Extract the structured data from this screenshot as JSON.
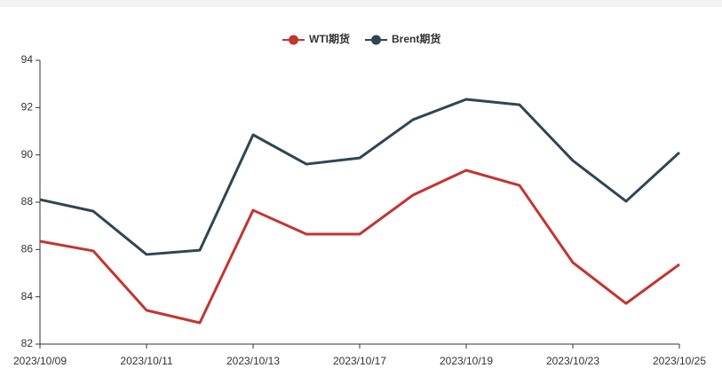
{
  "chart_data": {
    "type": "line",
    "categories": [
      "2023/10/09",
      null,
      "2023/10/11",
      null,
      "2023/10/13",
      null,
      "2023/10/17",
      null,
      "2023/10/19",
      null,
      "2023/10/23",
      null,
      "2023/10/25"
    ],
    "series": [
      {
        "name": "WTI期货",
        "color": "#c23531",
        "values": [
          86.35,
          85.94,
          83.43,
          82.9,
          87.66,
          86.65,
          86.65,
          88.3,
          89.35,
          88.71,
          85.45,
          83.72,
          85.37
        ]
      },
      {
        "name": "Brent期货",
        "color": "#2f4554",
        "values": [
          88.11,
          87.62,
          85.79,
          85.97,
          90.85,
          89.61,
          89.87,
          91.49,
          92.35,
          92.12,
          89.76,
          88.04,
          90.1
        ]
      }
    ],
    "ylim": [
      82,
      94
    ],
    "yticks": [
      82,
      84,
      86,
      88,
      90,
      92,
      94
    ],
    "legend": "top"
  }
}
